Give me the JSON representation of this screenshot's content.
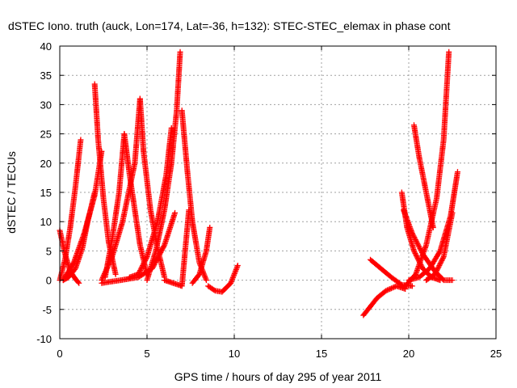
{
  "chart_data": {
    "type": "scatter",
    "title": "dSTEC Iono. truth (auck, Lon=174, Lat=-36, h=132): STEC-STEC_elemax in phase cont",
    "xlabel": "GPS time / hours of day 295 of year 2011",
    "ylabel": "dSTEC  / TECUs",
    "xlim": [
      0,
      25
    ],
    "ylim": [
      -10,
      40
    ],
    "x_ticks": [
      "0",
      "5",
      "10",
      "15",
      "20",
      "25"
    ],
    "y_ticks": [
      "-10",
      "-5",
      "0",
      "5",
      "10",
      "15",
      "20",
      "25",
      "30",
      "35",
      "40"
    ],
    "grid": true,
    "marker": "plus",
    "color": "#ff0000",
    "series": [
      {
        "x": [
          0.0,
          0.3,
          0.6,
          0.9,
          1.1
        ],
        "y": [
          8.5,
          4.5,
          1.5,
          0.2,
          -0.5
        ]
      },
      {
        "x": [
          0.0,
          0.3,
          0.6,
          0.9,
          1.2
        ],
        "y": [
          0.0,
          3.5,
          9.0,
          16.0,
          24.0
        ]
      },
      {
        "x": [
          0.2,
          0.8,
          1.4,
          2.0,
          2.4
        ],
        "y": [
          0.0,
          3.0,
          8.0,
          14.5,
          22.0
        ]
      },
      {
        "x": [
          0.2,
          0.5,
          0.9,
          1.3,
          1.6,
          2.0
        ],
        "y": [
          0.0,
          0.5,
          2.0,
          5.5,
          10.0,
          15.0
        ]
      },
      {
        "x": [
          2.0,
          2.2,
          2.5,
          2.8,
          3.2
        ],
        "y": [
          33.5,
          24.0,
          14.0,
          6.5,
          1.0
        ]
      },
      {
        "x": [
          2.6,
          3.0,
          3.4,
          3.7
        ],
        "y": [
          0.5,
          7.0,
          15.0,
          25.0
        ]
      },
      {
        "x": [
          3.7,
          4.0,
          4.3,
          4.6,
          5.0
        ],
        "y": [
          25.0,
          18.0,
          12.0,
          6.0,
          1.0
        ]
      },
      {
        "x": [
          2.4,
          3.0,
          3.6,
          4.3,
          4.6
        ],
        "y": [
          0.0,
          4.0,
          10.0,
          20.0,
          31.0
        ]
      },
      {
        "x": [
          4.6,
          4.8,
          5.2,
          5.6,
          6.0
        ],
        "y": [
          31.0,
          22.0,
          12.0,
          5.5,
          0.5
        ]
      },
      {
        "x": [
          4.0,
          4.5,
          5.0,
          5.6,
          6.1,
          6.4
        ],
        "y": [
          0.5,
          1.0,
          4.0,
          10.0,
          18.0,
          26.0
        ]
      },
      {
        "x": [
          5.0,
          5.5,
          6.0,
          6.4,
          6.7,
          6.9
        ],
        "y": [
          0.0,
          5.0,
          12.0,
          20.0,
          29.0,
          39.0
        ]
      },
      {
        "x": [
          2.4,
          3.5,
          4.5,
          5.3,
          6.0,
          6.6
        ],
        "y": [
          -0.5,
          0.0,
          0.5,
          2.0,
          6.0,
          11.5
        ]
      },
      {
        "x": [
          7.0,
          7.3,
          7.6,
          8.0,
          8.4
        ],
        "y": [
          29.0,
          19.0,
          10.0,
          3.0,
          0.0
        ]
      },
      {
        "x": [
          6.0,
          6.5,
          7.0,
          7.4
        ],
        "y": [
          0.0,
          -0.5,
          -1.0,
          12.0
        ]
      },
      {
        "x": [
          7.6,
          8.0,
          8.4,
          8.6
        ],
        "y": [
          -0.5,
          1.0,
          5.0,
          9.0
        ]
      },
      {
        "x": [
          8.5,
          8.9,
          9.3,
          9.8,
          10.2
        ],
        "y": [
          -1.0,
          -1.8,
          -2.0,
          -0.5,
          2.5
        ]
      },
      {
        "x": [
          17.4,
          17.8,
          18.2,
          18.7,
          19.3,
          19.8
        ],
        "y": [
          -6.0,
          -4.5,
          -3.0,
          -1.8,
          -1.0,
          -1.5
        ]
      },
      {
        "x": [
          17.8,
          18.4,
          19.0,
          19.6,
          20.2
        ],
        "y": [
          3.5,
          2.0,
          0.5,
          -0.8,
          -1.0
        ]
      },
      {
        "x": [
          19.6,
          19.9,
          20.3,
          20.8,
          21.3,
          21.8
        ],
        "y": [
          15.0,
          9.0,
          5.0,
          2.0,
          0.5,
          0.0
        ]
      },
      {
        "x": [
          20.3,
          20.6,
          21.0,
          21.4
        ],
        "y": [
          26.5,
          21.0,
          15.0,
          9.0
        ]
      },
      {
        "x": [
          19.8,
          20.4,
          21.0,
          21.6,
          22.0,
          22.3
        ],
        "y": [
          -1.0,
          1.0,
          6.0,
          14.0,
          24.0,
          39.0
        ]
      },
      {
        "x": [
          20.0,
          20.6,
          21.2,
          21.8,
          22.4,
          22.8
        ],
        "y": [
          0.0,
          0.5,
          2.0,
          5.0,
          11.0,
          18.5
        ]
      },
      {
        "x": [
          19.7,
          20.2,
          20.8,
          21.5,
          22.0,
          22.5
        ],
        "y": [
          12.0,
          8.0,
          4.5,
          1.5,
          0.0,
          0.0
        ]
      },
      {
        "x": [
          21.0,
          21.5,
          22.0,
          22.5
        ],
        "y": [
          0.0,
          1.0,
          4.0,
          11.5
        ]
      }
    ]
  }
}
